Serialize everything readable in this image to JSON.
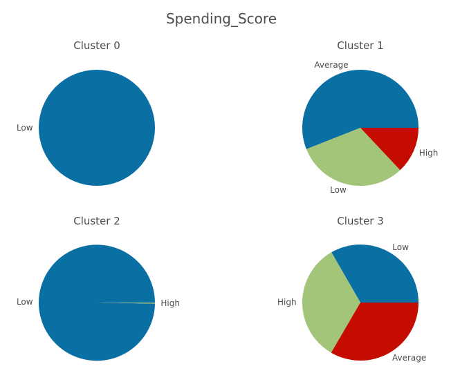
{
  "chart_data": {
    "title": "Spending_Score",
    "charts": [
      {
        "type": "pie",
        "title": "Cluster 0",
        "start_angle": 0,
        "slices": [
          {
            "label": "Low",
            "value": 100,
            "color": "#0a6fa2"
          }
        ]
      },
      {
        "type": "pie",
        "title": "Cluster 1",
        "start_angle": 0,
        "slices": [
          {
            "label": "Average",
            "value": 56,
            "color": "#0a6fa2"
          },
          {
            "label": "Low",
            "value": 31,
            "color": "#a2c579"
          },
          {
            "label": "High",
            "value": 13,
            "color": "#c40d00"
          }
        ]
      },
      {
        "type": "pie",
        "title": "Cluster 2",
        "start_angle": 0,
        "slices": [
          {
            "label": "Low",
            "value": 99.7,
            "color": "#0a6fa2"
          },
          {
            "label": "High",
            "value": 0.3,
            "color": "#a2c579"
          }
        ]
      },
      {
        "type": "pie",
        "title": "Cluster 3",
        "start_angle": 0,
        "slices": [
          {
            "label": "Low",
            "value": 33.3,
            "color": "#0a6fa2"
          },
          {
            "label": "High",
            "value": 33.3,
            "color": "#a2c579"
          },
          {
            "label": "Average",
            "value": 33.4,
            "color": "#c40d00"
          }
        ]
      }
    ]
  }
}
